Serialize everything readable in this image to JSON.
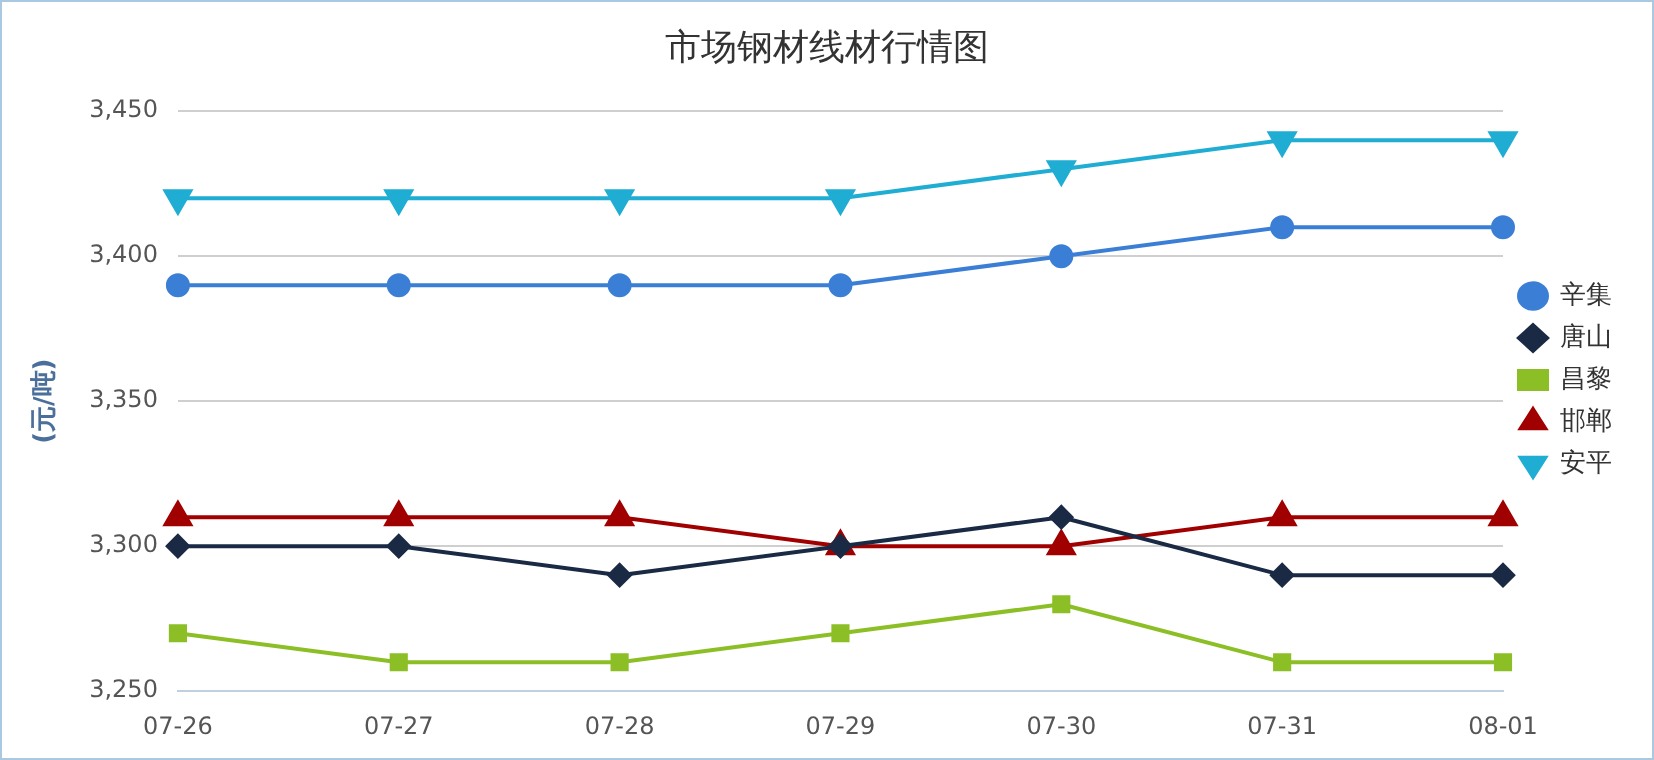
{
  "chart_data": {
    "type": "line",
    "title": "市场钢材线材行情图",
    "ylabel": "(元/吨)",
    "categories": [
      "07-26",
      "07-27",
      "07-28",
      "07-29",
      "07-30",
      "07-31",
      "08-01"
    ],
    "series": [
      {
        "name": "辛集",
        "color": "#3a7fd5",
        "marker": "circle",
        "values": [
          3390,
          3390,
          3390,
          3390,
          3400,
          3410,
          3410
        ]
      },
      {
        "name": "唐山",
        "color": "#1a2a45",
        "marker": "diamond",
        "values": [
          3300,
          3300,
          3290,
          3300,
          3310,
          3290,
          3290
        ]
      },
      {
        "name": "昌黎",
        "color": "#8cbf26",
        "marker": "square",
        "values": [
          3270,
          3260,
          3260,
          3270,
          3280,
          3260,
          3260
        ]
      },
      {
        "name": "邯郸",
        "color": "#a00000",
        "marker": "triangle",
        "values": [
          3310,
          3310,
          3310,
          3300,
          3300,
          3310,
          3310
        ]
      },
      {
        "name": "安平",
        "color": "#1fadd3",
        "marker": "triangle-down",
        "values": [
          3420,
          3420,
          3420,
          3420,
          3430,
          3440,
          3440
        ]
      }
    ],
    "ylim": [
      3250,
      3450
    ],
    "yticks": [
      {
        "value": 3250,
        "label": "3,250"
      },
      {
        "value": 3300,
        "label": "3,300"
      },
      {
        "value": 3350,
        "label": "3,350"
      },
      {
        "value": 3400,
        "label": "3,400"
      },
      {
        "value": 3450,
        "label": "3,450"
      }
    ],
    "grid": "y",
    "legend": "right",
    "line_style": "solid"
  }
}
